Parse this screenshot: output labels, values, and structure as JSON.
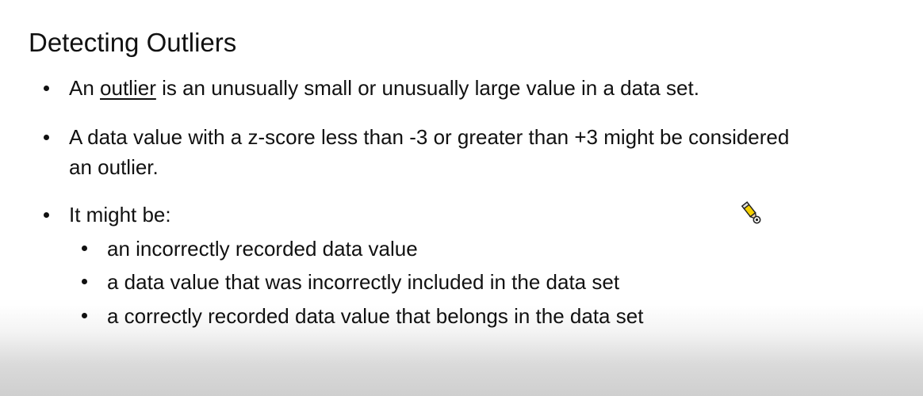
{
  "title": "Detecting Outliers",
  "bullets": [
    {
      "pre": "An ",
      "term": "outlier",
      "post": " is an unusually small or unusually large value in a data set."
    },
    {
      "line1": "A data value with a z-score less than -3 or greater than +3 might be considered",
      "line2": "an outlier."
    },
    {
      "text": "It might be:",
      "subitems": [
        "an incorrectly recorded data value",
        "a data value that was incorrectly included in the data set",
        "a correctly recorded data value that belongs in the data set"
      ]
    }
  ],
  "cursor_icon": "pencil-cursor-icon"
}
